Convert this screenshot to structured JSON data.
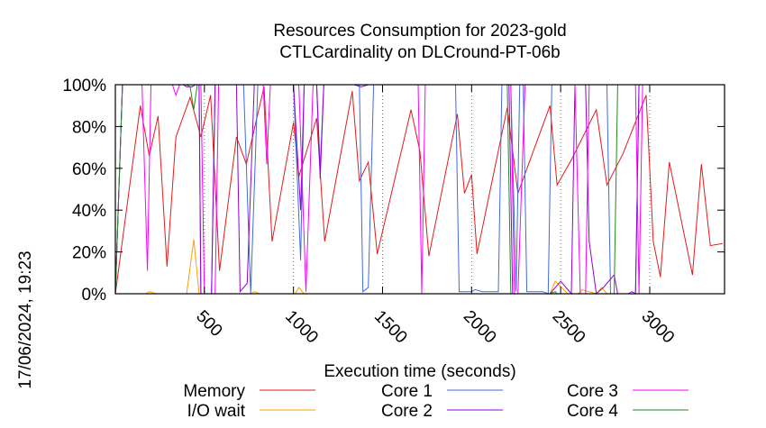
{
  "chart_data": {
    "type": "line",
    "title": "Resources Consumption for 2023-gold",
    "subtitle": "CTLCardinality on DLCround-PT-06b",
    "xlabel": "Execution time (seconds)",
    "ylabel": "",
    "timestamp": "17/06/2024, 19:23",
    "xlim": [
      0,
      3420
    ],
    "ylim": [
      0,
      100
    ],
    "xticks": [
      500,
      1000,
      1500,
      2000,
      2500,
      3000
    ],
    "xtick_labels": [
      "500",
      "1000",
      "1500",
      "2000",
      "2500",
      "3000"
    ],
    "yticks": [
      0,
      20,
      40,
      60,
      80,
      100
    ],
    "ytick_labels": [
      "0%",
      "20%",
      "40%",
      "60%",
      "80%",
      "100%"
    ],
    "grid": "dotted vertical lines at x ticks",
    "legend_position": "bottom",
    "series": [
      {
        "name": "Memory",
        "color": "#e41a1c",
        "points": [
          [
            0,
            0
          ],
          [
            140,
            90
          ],
          [
            190,
            66
          ],
          [
            240,
            85
          ],
          [
            290,
            13
          ],
          [
            340,
            75
          ],
          [
            420,
            94
          ],
          [
            480,
            75
          ],
          [
            535,
            95
          ],
          [
            585,
            11
          ],
          [
            680,
            75
          ],
          [
            735,
            62
          ],
          [
            835,
            99
          ],
          [
            880,
            25
          ],
          [
            1000,
            82
          ],
          [
            1030,
            56
          ],
          [
            1130,
            84
          ],
          [
            1175,
            25
          ],
          [
            1330,
            97
          ],
          [
            1370,
            54
          ],
          [
            1420,
            63
          ],
          [
            1470,
            19
          ],
          [
            1660,
            88
          ],
          [
            1710,
            68
          ],
          [
            1760,
            18
          ],
          [
            1920,
            86
          ],
          [
            1960,
            48
          ],
          [
            2000,
            57
          ],
          [
            2030,
            19
          ],
          [
            2200,
            89
          ],
          [
            2260,
            48
          ],
          [
            2440,
            90
          ],
          [
            2480,
            52
          ],
          [
            2560,
            64
          ],
          [
            2700,
            88
          ],
          [
            2760,
            52
          ],
          [
            2850,
            67
          ],
          [
            2980,
            95
          ],
          [
            3020,
            25
          ],
          [
            3060,
            8
          ],
          [
            3110,
            63
          ],
          [
            3240,
            9
          ],
          [
            3290,
            62
          ],
          [
            3340,
            23
          ],
          [
            3410,
            24
          ]
        ]
      },
      {
        "name": "I/O wait",
        "color": "#ff9f00",
        "points": [
          [
            0,
            0
          ],
          [
            170,
            0
          ],
          [
            190,
            1
          ],
          [
            230,
            0
          ],
          [
            400,
            0
          ],
          [
            440,
            26
          ],
          [
            470,
            0
          ],
          [
            760,
            0
          ],
          [
            780,
            1
          ],
          [
            810,
            0
          ],
          [
            1010,
            0
          ],
          [
            1030,
            3
          ],
          [
            1060,
            0
          ],
          [
            2440,
            0
          ],
          [
            2470,
            6
          ],
          [
            2540,
            0
          ],
          [
            2600,
            0
          ],
          [
            2620,
            2
          ],
          [
            2700,
            0
          ],
          [
            2730,
            3
          ],
          [
            2760,
            0
          ]
        ]
      },
      {
        "name": "Core 1",
        "color": "#4169e1",
        "points": [
          [
            0,
            0
          ],
          [
            40,
            100
          ],
          [
            380,
            100
          ],
          [
            400,
            99
          ],
          [
            430,
            99
          ],
          [
            450,
            100
          ],
          [
            470,
            100
          ],
          [
            480,
            0
          ],
          [
            540,
            0
          ],
          [
            560,
            100
          ],
          [
            700,
            100
          ],
          [
            720,
            100
          ],
          [
            760,
            0
          ],
          [
            800,
            100
          ],
          [
            970,
            100
          ],
          [
            1000,
            100
          ],
          [
            1040,
            16
          ],
          [
            1060,
            100
          ],
          [
            1130,
            100
          ],
          [
            1150,
            60
          ],
          [
            1170,
            100
          ],
          [
            1370,
            100
          ],
          [
            1390,
            1
          ],
          [
            1420,
            3
          ],
          [
            1450,
            100
          ],
          [
            1910,
            100
          ],
          [
            1930,
            1
          ],
          [
            2000,
            1
          ],
          [
            2020,
            2
          ],
          [
            2060,
            1
          ],
          [
            2150,
            1
          ],
          [
            2170,
            100
          ],
          [
            2220,
            100
          ],
          [
            2250,
            1
          ],
          [
            2270,
            100
          ],
          [
            2290,
            100
          ],
          [
            2310,
            1
          ],
          [
            2400,
            1
          ],
          [
            2430,
            0
          ],
          [
            2450,
            100
          ],
          [
            2760,
            100
          ],
          [
            2780,
            0
          ],
          [
            2920,
            0
          ],
          [
            2940,
            100
          ],
          [
            3420,
            100
          ]
        ]
      },
      {
        "name": "Core 2",
        "color": "#9400d3",
        "points": [
          [
            0,
            0
          ],
          [
            40,
            100
          ],
          [
            380,
            100
          ],
          [
            400,
            99
          ],
          [
            430,
            99
          ],
          [
            450,
            100
          ],
          [
            470,
            100
          ],
          [
            480,
            0
          ],
          [
            540,
            0
          ],
          [
            560,
            100
          ],
          [
            680,
            100
          ],
          [
            700,
            1
          ],
          [
            740,
            5
          ],
          [
            780,
            100
          ],
          [
            960,
            100
          ],
          [
            1000,
            100
          ],
          [
            1040,
            40
          ],
          [
            1060,
            100
          ],
          [
            1130,
            100
          ],
          [
            1150,
            55
          ],
          [
            1170,
            100
          ],
          [
            1340,
            100
          ],
          [
            1380,
            99
          ],
          [
            1420,
            100
          ],
          [
            2210,
            100
          ],
          [
            2230,
            0
          ],
          [
            2440,
            0
          ],
          [
            2500,
            6
          ],
          [
            2560,
            0
          ],
          [
            2580,
            100
          ],
          [
            2640,
            100
          ],
          [
            2660,
            25
          ],
          [
            2700,
            0
          ],
          [
            2740,
            3
          ],
          [
            2800,
            9
          ],
          [
            2820,
            0
          ],
          [
            2880,
            0
          ],
          [
            2900,
            1
          ],
          [
            2920,
            0
          ],
          [
            2940,
            100
          ],
          [
            3420,
            100
          ]
        ]
      },
      {
        "name": "Core 3",
        "color": "#ff00ff",
        "points": [
          [
            0,
            0
          ],
          [
            40,
            100
          ],
          [
            150,
            100
          ],
          [
            180,
            11
          ],
          [
            200,
            100
          ],
          [
            320,
            100
          ],
          [
            340,
            95
          ],
          [
            360,
            100
          ],
          [
            480,
            100
          ],
          [
            500,
            0
          ],
          [
            560,
            0
          ],
          [
            580,
            100
          ],
          [
            830,
            100
          ],
          [
            850,
            62
          ],
          [
            870,
            100
          ],
          [
            1030,
            100
          ],
          [
            1070,
            1
          ],
          [
            1110,
            100
          ],
          [
            1700,
            100
          ],
          [
            1720,
            0
          ],
          [
            1740,
            100
          ],
          [
            2220,
            100
          ],
          [
            2240,
            0
          ],
          [
            2260,
            0
          ],
          [
            2300,
            100
          ],
          [
            2580,
            100
          ],
          [
            2610,
            0
          ],
          [
            2640,
            0
          ],
          [
            2660,
            100
          ],
          [
            2920,
            100
          ],
          [
            2940,
            0
          ],
          [
            2960,
            100
          ],
          [
            3420,
            100
          ]
        ]
      },
      {
        "name": "Core 4",
        "color": "#228b22",
        "points": [
          [
            0,
            0
          ],
          [
            40,
            100
          ],
          [
            400,
            100
          ],
          [
            420,
            99
          ],
          [
            440,
            88
          ],
          [
            460,
            100
          ],
          [
            2200,
            100
          ],
          [
            2220,
            0
          ],
          [
            2440,
            0
          ],
          [
            2470,
            1
          ],
          [
            2480,
            0
          ],
          [
            2800,
            0
          ],
          [
            2820,
            100
          ],
          [
            3420,
            100
          ]
        ]
      }
    ]
  }
}
